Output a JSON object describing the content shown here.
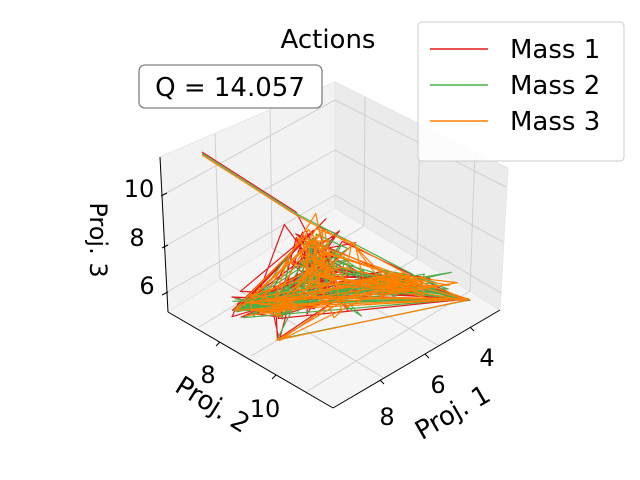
{
  "chart_data": {
    "type": "line",
    "projection": "3d",
    "title": "Actions",
    "annotation": "Q = 14.057",
    "xlabel": "Proj. 1",
    "ylabel": "Proj. 2",
    "zlabel": "Proj. 3",
    "xticks": [
      "4",
      "6",
      "8"
    ],
    "yticks": [
      "8",
      "10"
    ],
    "zticks": [
      "6",
      "8",
      "10"
    ],
    "xlim": [
      3,
      9.5
    ],
    "ylim": [
      6,
      11.5
    ],
    "zlim": [
      4.8,
      11.2
    ],
    "grid": true,
    "legend": {
      "placement": "top-right"
    },
    "series": [
      {
        "name": "Mass 1",
        "color": "#e41a1c"
      },
      {
        "name": "Mass 2",
        "color": "#4daf4a"
      },
      {
        "name": "Mass 3",
        "color": "#ff7f00"
      }
    ]
  }
}
